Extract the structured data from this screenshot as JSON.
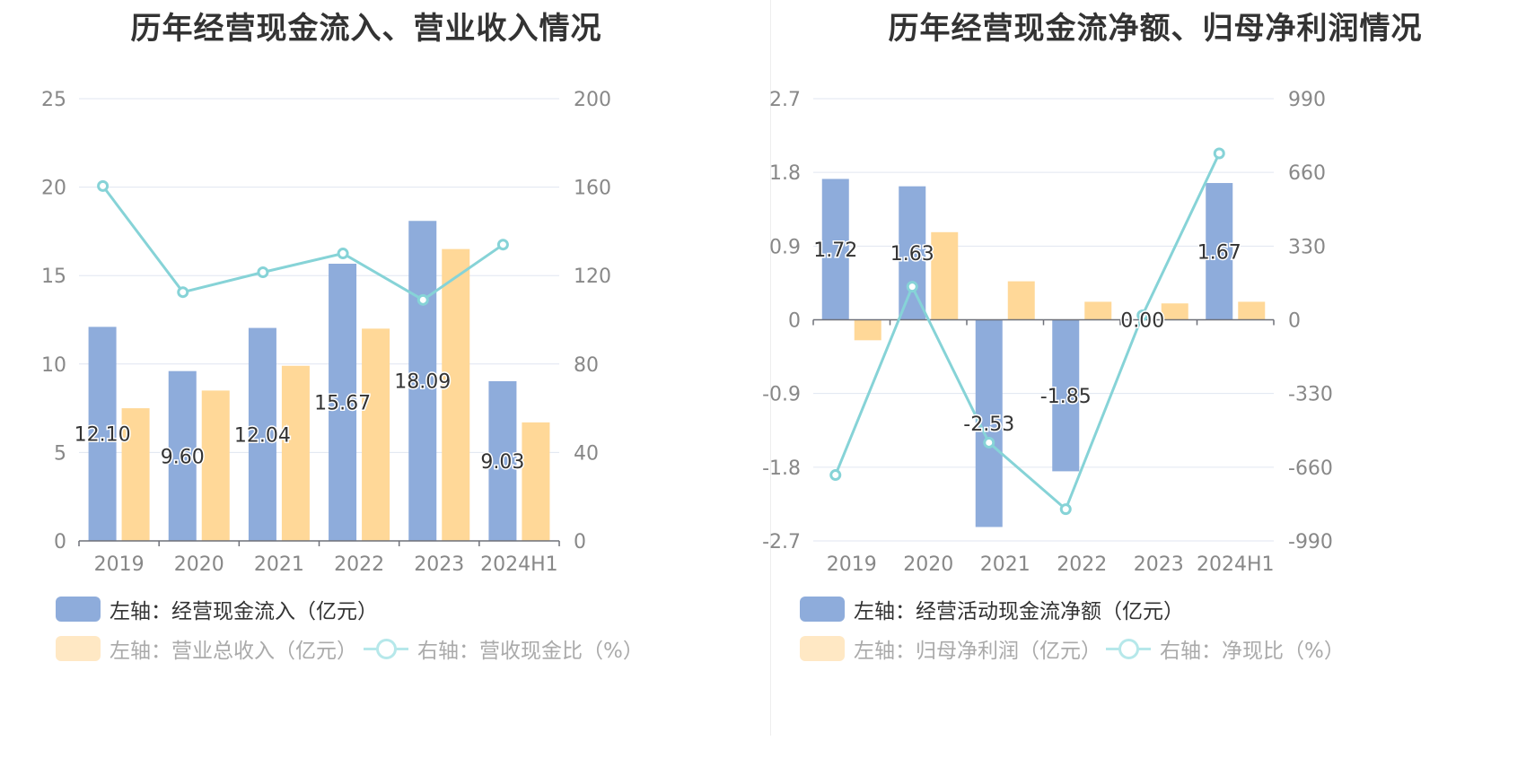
{
  "colors": {
    "bar1": "#8eacdb",
    "bar2": "#ffd898",
    "line": "#86d3d7",
    "legend_faded_bar": "#ffe8c4",
    "grid": "#e0e6f1",
    "axis": "#6e7079",
    "tick_text": "#888888",
    "label_text": "#333333"
  },
  "chart_data": [
    {
      "type": "bar+line",
      "title": "历年经营现金流入、营业收入情况",
      "categories": [
        "2019",
        "2020",
        "2021",
        "2022",
        "2023",
        "2024H1"
      ],
      "left_axis": {
        "min": 0,
        "max": 25,
        "ticks": [
          "0",
          "5",
          "10",
          "15",
          "20",
          "25"
        ]
      },
      "right_axis": {
        "min": 0,
        "max": 200,
        "ticks": [
          "0",
          "40",
          "80",
          "120",
          "160",
          "200"
        ]
      },
      "series": [
        {
          "name": "左轴：经营现金流入（亿元）",
          "type": "bar",
          "axis": "left",
          "values": [
            12.1,
            9.6,
            12.04,
            15.67,
            18.09,
            9.03
          ],
          "labels": [
            "12.10",
            "9.60",
            "12.04",
            "15.67",
            "18.09",
            "9.03"
          ]
        },
        {
          "name": "左轴：营业总收入（亿元）",
          "type": "bar",
          "axis": "left",
          "values": [
            7.5,
            8.5,
            9.9,
            12.0,
            16.5,
            6.7
          ]
        },
        {
          "name": "右轴：营收现金比（%）",
          "type": "line",
          "axis": "right",
          "values": [
            160.5,
            112.5,
            121.5,
            130.0,
            109.0,
            134.0
          ]
        }
      ],
      "legend": [
        {
          "label": "左轴：经营现金流入（亿元）",
          "kind": "bar1",
          "active": true
        },
        {
          "label": "左轴：营业总收入（亿元）",
          "kind": "bar2",
          "active": false
        },
        {
          "label": "右轴：营收现金比（%）",
          "kind": "line",
          "active": false
        }
      ]
    },
    {
      "type": "bar+line",
      "title": "历年经营现金流净额、归母净利润情况",
      "categories": [
        "2019",
        "2020",
        "2021",
        "2022",
        "2023",
        "2024H1"
      ],
      "left_axis": {
        "min": -2.7,
        "max": 2.7,
        "ticks": [
          "-2.7",
          "-1.8",
          "-0.9",
          "0",
          "0.9",
          "1.8",
          "2.7"
        ]
      },
      "right_axis": {
        "min": -990,
        "max": 990,
        "ticks": [
          "-990",
          "-660",
          "-330",
          "0",
          "330",
          "660",
          "990"
        ]
      },
      "series": [
        {
          "name": "左轴：经营活动现金流净额（亿元）",
          "type": "bar",
          "axis": "left",
          "values": [
            1.72,
            1.63,
            -2.53,
            -1.85,
            0.0,
            1.67
          ],
          "labels": [
            "1.72",
            "1.63",
            "-2.53",
            "-1.85",
            "0.00",
            "1.67"
          ]
        },
        {
          "name": "左轴：归母净利润（亿元）",
          "type": "bar",
          "axis": "left",
          "values": [
            -0.25,
            1.07,
            0.47,
            0.22,
            0.2,
            0.22
          ]
        },
        {
          "name": "右轴：净现比（%）",
          "type": "line",
          "axis": "right",
          "values": [
            -695,
            148,
            -550,
            -848,
            20,
            745
          ]
        }
      ],
      "legend": [
        {
          "label": "左轴：经营活动现金流净额（亿元）",
          "kind": "bar1",
          "active": true
        },
        {
          "label": "左轴：归母净利润（亿元）",
          "kind": "bar2",
          "active": false
        },
        {
          "label": "右轴：净现比（%）",
          "kind": "line",
          "active": false
        }
      ]
    }
  ]
}
